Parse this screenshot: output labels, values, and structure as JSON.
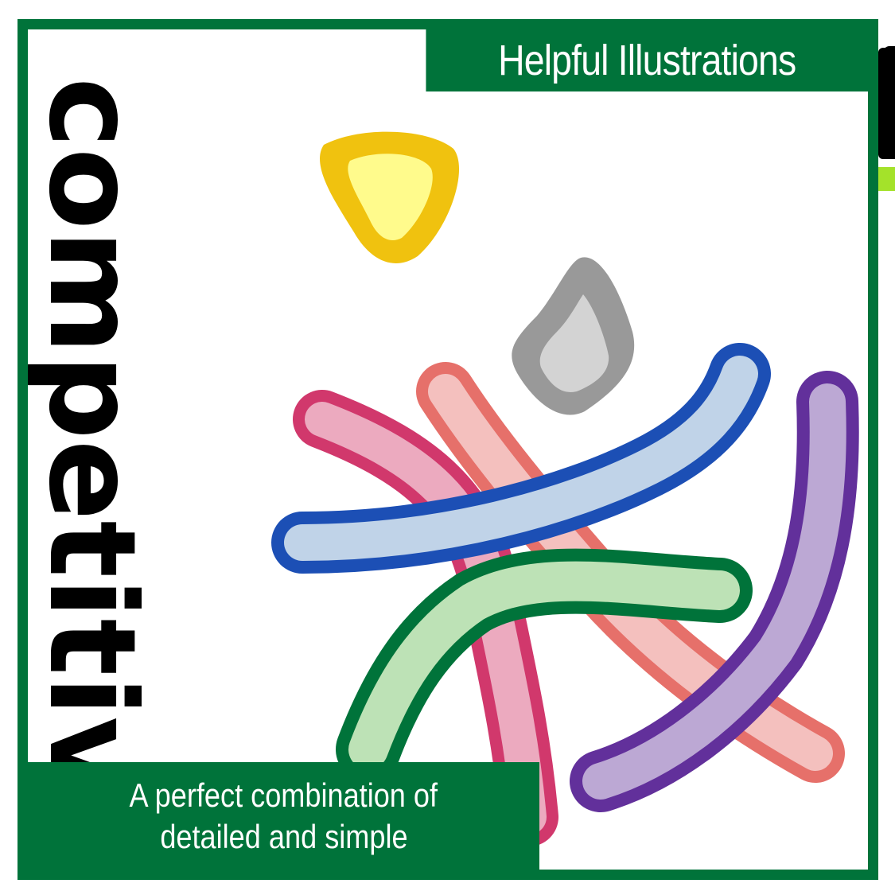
{
  "header": {
    "title": "Helpful Illustrations"
  },
  "side_word": "competitive",
  "caption": {
    "line1": "A perfect combination of",
    "line2": "detailed and simple"
  },
  "colors": {
    "brand_green": "#00733a",
    "accent_lime": "#a4e22a",
    "yellow": "#f0c20f",
    "gray": "#999999",
    "blue": "#1c4fb5",
    "pink": "#d1386c",
    "salmon": "#e6706a",
    "green": "#00733a",
    "purple": "#62309b"
  },
  "illustration_icons": [
    "yellow-triangle-icon",
    "gray-drop-icon",
    "pink-stroke",
    "salmon-stroke",
    "blue-stroke",
    "green-stroke",
    "purple-stroke"
  ]
}
